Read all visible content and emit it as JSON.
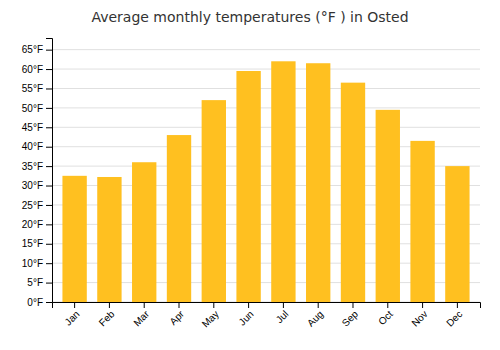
{
  "chart_data": {
    "type": "bar",
    "title": "Average monthly temperatures (°F ) in Osted",
    "categories": [
      "Jan",
      "Feb",
      "Mar",
      "Apr",
      "May",
      "Jun",
      "Jul",
      "Aug",
      "Sep",
      "Oct",
      "Nov",
      "Dec"
    ],
    "values": [
      32.5,
      32.2,
      36.0,
      43.0,
      52.0,
      59.5,
      62.0,
      61.5,
      56.5,
      49.5,
      41.5,
      35.0
    ],
    "color": "#FFC020",
    "ylim": [
      0,
      68
    ],
    "yticks": [
      {
        "value": 0,
        "label": "0°F"
      },
      {
        "value": 5,
        "label": "5°F"
      },
      {
        "value": 10,
        "label": "10°F"
      },
      {
        "value": 15,
        "label": "15°F"
      },
      {
        "value": 20,
        "label": "20°F"
      },
      {
        "value": 25,
        "label": "25°F"
      },
      {
        "value": 30,
        "label": "30°F"
      },
      {
        "value": 35,
        "label": "35°F"
      },
      {
        "value": 40,
        "label": "40°F"
      },
      {
        "value": 45,
        "label": "45°F"
      },
      {
        "value": 50,
        "label": "50°F"
      },
      {
        "value": 55,
        "label": "55°F"
      },
      {
        "value": 60,
        "label": "60°F"
      },
      {
        "value": 65,
        "label": "65°F"
      }
    ],
    "grid": true
  }
}
